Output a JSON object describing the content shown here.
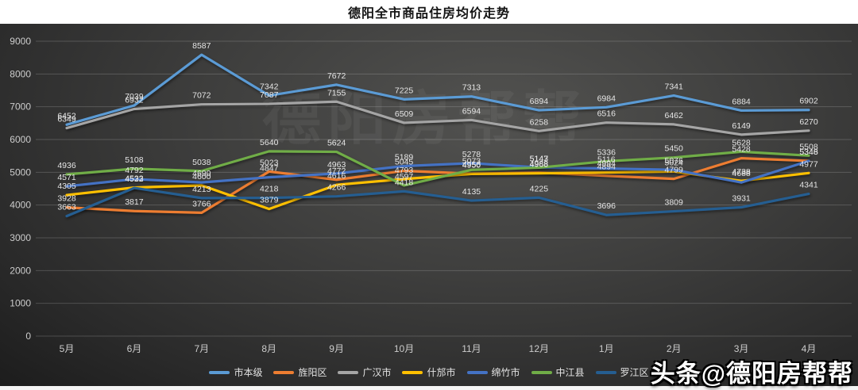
{
  "title": "德阳全市商品住房均价走势",
  "watermark": "头条@德阳房帮帮",
  "ghost_watermark": "德阳房帮帮",
  "chart_data": {
    "type": "line",
    "title": "德阳全市商品住房均价走势",
    "categories": [
      "5月",
      "6月",
      "7月",
      "8月",
      "9月",
      "10月",
      "11月",
      "12月",
      "1月",
      "2月",
      "3月",
      "4月"
    ],
    "ylim": [
      0,
      9000
    ],
    "ytick_step": 1000,
    "grid": true,
    "legend_position": "bottom",
    "data_labels": true,
    "series": [
      {
        "name": "市本级",
        "color": "#5B9BD5",
        "values": [
          6452,
          7039,
          8587,
          7342,
          7672,
          7225,
          7313,
          6894,
          6984,
          7341,
          6884,
          6902
        ]
      },
      {
        "name": "旌阳区",
        "color": "#ED7D31",
        "values": [
          3928,
          3817,
          3766,
          5023,
          4772,
          5045,
          4956,
          4988,
          4894,
          4799,
          5428,
          5348
        ]
      },
      {
        "name": "广汉市",
        "color": "#A5A5A5",
        "values": [
          6349,
          6932,
          7072,
          7087,
          7155,
          6509,
          6594,
          6258,
          6516,
          6462,
          6149,
          6270
        ]
      },
      {
        "name": "什邡市",
        "color": "#FFC000",
        "values": [
          4305,
          4533,
          4600,
          3879,
          4616,
          4793,
          4950,
          4968,
          4994,
          5024,
          4738,
          4977
        ]
      },
      {
        "name": "绵竹市",
        "color": "#4472C4",
        "values": [
          4571,
          4792,
          4690,
          4847,
          4963,
          5189,
          5278,
          5147,
          5116,
          5076,
          4688,
          5346
        ]
      },
      {
        "name": "中江县",
        "color": "#70AD47",
        "values": [
          4936,
          5108,
          5038,
          5640,
          5624,
          4597,
          5073,
          5143,
          5336,
          5450,
          5628,
          5508
        ]
      },
      {
        "name": "罗江区",
        "color": "#255E91",
        "values": [
          3663,
          4522,
          4213,
          4218,
          4266,
          4418,
          4135,
          4225,
          3696,
          3809,
          3931,
          4341
        ]
      }
    ]
  }
}
